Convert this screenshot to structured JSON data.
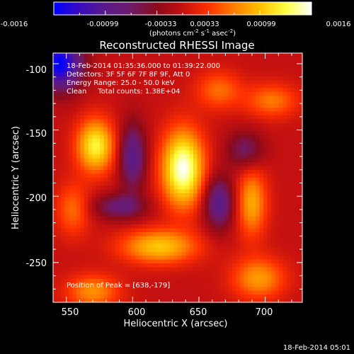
{
  "colorbar": {
    "tick_labels": [
      "-0.0016",
      "-0.00099",
      "-0.00033",
      "0.00033",
      "0.00099",
      "0.0016"
    ],
    "units_prefix": "(photons cm",
    "units_exp1": "-2",
    "units_mid": " s",
    "units_exp2": "-1",
    "units_mid2": " asec",
    "units_exp3": "-2",
    "units_suffix": ")"
  },
  "plot": {
    "title": "Reconstructed RHESSI Image",
    "info_lines": [
      "18-Feb-2014 01:35:36.000 to 01:39:22.000",
      "Detectors: 3F 5F 6F 7F 8F 9F, Att 0",
      "Energy Range: 25.0 - 50.0 keV",
      "Clean     Total counts: 1.38E+04"
    ],
    "peak_label": "Position of Peak = [638,-179]",
    "footer_date": "18-Feb-2014 05:01"
  },
  "chart_data": {
    "type": "heatmap",
    "title": "Reconstructed RHESSI Image",
    "xlabel": "Heliocentric X (arcsec)",
    "ylabel": "Heliocentric Y (arcsec)",
    "xlim": [
      540,
      728
    ],
    "ylim": [
      -280,
      -92
    ],
    "x_ticks": [
      550,
      600,
      650,
      700
    ],
    "y_ticks": [
      -100,
      -150,
      -200,
      -250
    ],
    "colorbar_range": [
      -0.0016,
      0.0016
    ],
    "colormap": [
      "#0000ff",
      "#3a0bbf",
      "#5a1a8a",
      "#6e1a6a",
      "#8b0a1a",
      "#c41010",
      "#ff3000",
      "#ff8000",
      "#ffc000",
      "#ffff40",
      "#ffffff"
    ],
    "peak": {
      "x": 638,
      "y": -179,
      "value": 0.0016
    },
    "sources": [
      {
        "x": 638,
        "y": -179,
        "amp": 1.0,
        "sx": 11,
        "sy": 20
      },
      {
        "x": 572,
        "y": -162,
        "amp": 0.78,
        "sx": 10,
        "sy": 14
      },
      {
        "x": 620,
        "y": -238,
        "amp": 0.62,
        "sx": 20,
        "sy": 9
      },
      {
        "x": 690,
        "y": -205,
        "amp": 0.52,
        "sx": 8,
        "sy": 18
      },
      {
        "x": 695,
        "y": -262,
        "amp": 0.48,
        "sx": 14,
        "sy": 11
      },
      {
        "x": 570,
        "y": -272,
        "amp": 0.45,
        "sx": 14,
        "sy": 9
      },
      {
        "x": 705,
        "y": -128,
        "amp": 0.38,
        "sx": 14,
        "sy": 9
      },
      {
        "x": 665,
        "y": -120,
        "amp": 0.35,
        "sx": 12,
        "sy": 10
      },
      {
        "x": 555,
        "y": -210,
        "amp": 0.35,
        "sx": 9,
        "sy": 14
      }
    ],
    "negatives": [
      {
        "x": 545,
        "y": -100,
        "amp": 1.0,
        "sx": 12,
        "sy": 14
      },
      {
        "x": 600,
        "y": -170,
        "amp": 0.6,
        "sx": 7,
        "sy": 18
      },
      {
        "x": 665,
        "y": -205,
        "amp": 0.6,
        "sx": 8,
        "sy": 14
      },
      {
        "x": 590,
        "y": -208,
        "amp": 0.45,
        "sx": 14,
        "sy": 7
      },
      {
        "x": 685,
        "y": -165,
        "amp": 0.4,
        "sx": 10,
        "sy": 10
      }
    ]
  }
}
